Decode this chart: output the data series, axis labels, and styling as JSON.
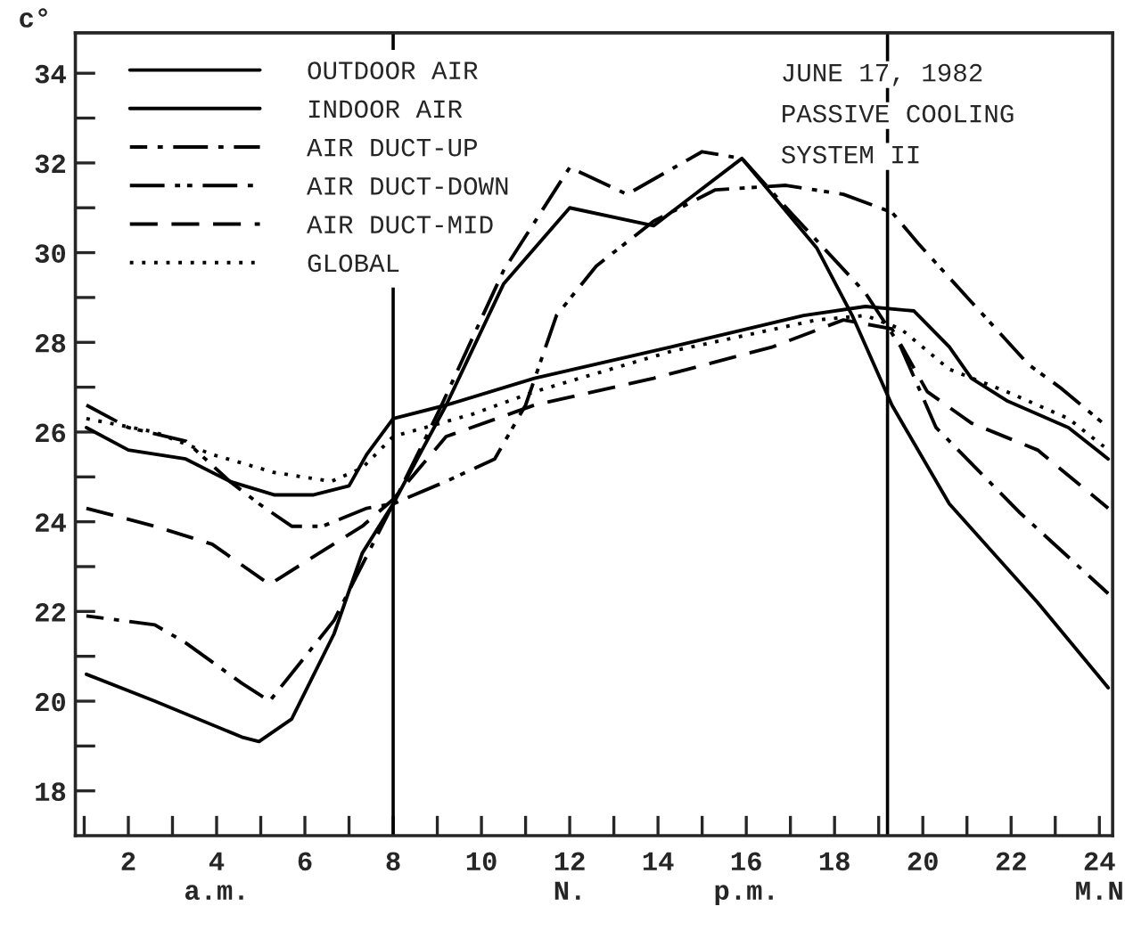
{
  "chart_data": {
    "type": "line",
    "ylabel": "c°",
    "xlim": [
      0.8,
      24.3
    ],
    "ylim": [
      17,
      34.9
    ],
    "xticks": [
      {
        "value": 1,
        "label": null
      },
      2,
      {
        "value": 3,
        "label": null
      },
      {
        "value": 4,
        "label": "4\na.m."
      },
      {
        "value": 5,
        "label": null
      },
      6,
      {
        "value": 7,
        "label": null
      },
      8,
      {
        "value": 9,
        "label": null
      },
      10,
      {
        "value": 11,
        "label": null
      },
      {
        "value": 12,
        "label": "12\nN."
      },
      {
        "value": 13,
        "label": null
      },
      14,
      {
        "value": 15,
        "label": null
      },
      {
        "value": 16,
        "label": "16\np.m."
      },
      {
        "value": 17,
        "label": null
      },
      18,
      {
        "value": 19,
        "label": null
      },
      20,
      {
        "value": 21,
        "label": null
      },
      22,
      {
        "value": 23,
        "label": null
      },
      {
        "value": 24,
        "label": "24\nM.N"
      }
    ],
    "yticks": [
      18,
      {
        "value": 19,
        "label": null
      },
      20,
      {
        "value": 21,
        "label": null
      },
      22,
      {
        "value": 23,
        "label": null
      },
      24,
      {
        "value": 25,
        "label": null
      },
      26,
      {
        "value": 27,
        "label": null
      },
      28,
      {
        "value": 29,
        "label": null
      },
      30,
      {
        "value": 31,
        "label": null
      },
      32,
      {
        "value": 33,
        "label": null
      },
      34
    ],
    "grid": false,
    "legend": "top left",
    "marker": "none",
    "series": [
      {
        "name": "OUTDOOR AIR",
        "color": "#000000",
        "line_style": "solid",
        "x": [
          1.05,
          2.6,
          4.57,
          4.96,
          5.7,
          6.66,
          7.3,
          8,
          9.2,
          10.5,
          12,
          13.9,
          15.9,
          17.6,
          18.4,
          19.3,
          20.6,
          22.6,
          24.2
        ],
        "values": [
          20.6,
          20.0,
          19.2,
          19.1,
          19.6,
          21.5,
          23.3,
          24.4,
          26.6,
          29.3,
          31.0,
          30.6,
          32.1,
          30.1,
          28.6,
          26.6,
          24.4,
          22.2,
          20.3
        ]
      },
      {
        "name": "INDOOR AIR",
        "color": "#000000",
        "line_style": "solid",
        "x": [
          1.05,
          2,
          3.3,
          4.3,
          5.3,
          6.2,
          7.0,
          7.4,
          8,
          9.2,
          11.2,
          14.3,
          17.3,
          18.7,
          19.8,
          20.6,
          21.1,
          21.9,
          23.3,
          24.2
        ],
        "values": [
          26.1,
          25.6,
          25.4,
          24.9,
          24.6,
          24.6,
          24.8,
          25.5,
          26.3,
          26.6,
          27.2,
          27.9,
          28.6,
          28.8,
          28.7,
          27.9,
          27.2,
          26.7,
          26.1,
          25.4
        ]
      },
      {
        "name": "AIR DUCT-UP",
        "color": "#000000",
        "line_style": "dashdot",
        "x": [
          1.05,
          2.6,
          3.3,
          4.57,
          5.2,
          6.66,
          8,
          9.05,
          10.5,
          12.0,
          13.3,
          15.0,
          15.9,
          17.0,
          18.7,
          19.5,
          20.3,
          22.2,
          24.2
        ],
        "values": [
          21.9,
          21.7,
          21.3,
          20.4,
          20.0,
          21.8,
          24.4,
          26.5,
          29.6,
          31.9,
          31.3,
          32.25,
          32.1,
          30.9,
          29.1,
          27.9,
          26.1,
          24.2,
          22.4
        ]
      },
      {
        "name": "AIR DUCT-DOWN",
        "color": "#000000",
        "line_style": "dashdotdot",
        "x": [
          1.05,
          2.0,
          3.3,
          4.3,
          4.96,
          5.7,
          6.4,
          7.4,
          8,
          9.2,
          10.3,
          11.0,
          11.7,
          12.6,
          13.9,
          15.3,
          16.9,
          18.2,
          19.3,
          19.9,
          21.1,
          22.4,
          23.1,
          24.2
        ],
        "values": [
          26.6,
          26.1,
          25.8,
          24.9,
          24.4,
          23.9,
          23.9,
          24.3,
          24.4,
          24.9,
          25.4,
          26.6,
          28.6,
          29.7,
          30.7,
          31.4,
          31.5,
          31.3,
          30.9,
          30.2,
          28.9,
          27.5,
          27.0,
          26.1
        ]
      },
      {
        "name": "AIR DUCT-MID",
        "color": "#000000",
        "line_style": "dashed",
        "x": [
          1.05,
          2.6,
          3.9,
          5.2,
          6.0,
          7.3,
          8,
          9.2,
          11.2,
          13.9,
          16.6,
          18.2,
          19.3,
          20.1,
          21.1,
          22.6,
          24.2
        ],
        "values": [
          24.3,
          23.9,
          23.5,
          22.6,
          23.1,
          23.9,
          24.5,
          25.9,
          26.6,
          27.2,
          27.9,
          28.5,
          28.3,
          26.9,
          26.2,
          25.6,
          24.3
        ]
      },
      {
        "name": "GLOBAL",
        "color": "#000000",
        "line_style": "dotted",
        "x": [
          1.05,
          2.6,
          3.9,
          5.3,
          6.6,
          7.3,
          8,
          9.8,
          11.2,
          14.3,
          17.6,
          18.7,
          19.5,
          20.6,
          21.9,
          23.3,
          24.2
        ],
        "values": [
          26.3,
          26.0,
          25.5,
          25.1,
          24.9,
          25.2,
          25.9,
          26.4,
          26.9,
          27.8,
          28.5,
          28.6,
          28.3,
          27.4,
          26.9,
          26.3,
          25.6
        ]
      }
    ],
    "ref_lines": [
      {
        "axis": "x",
        "value": 8,
        "color": "#000000"
      },
      {
        "axis": "x",
        "value": 19.2,
        "color": "#000000"
      }
    ],
    "annotations": [
      "JUNE 17, 1982",
      "PASSIVE COOLING",
      "SYSTEM II"
    ]
  }
}
